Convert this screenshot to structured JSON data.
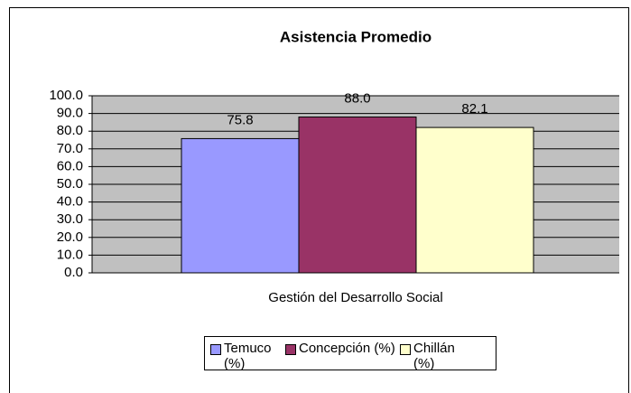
{
  "chart_data": {
    "type": "bar",
    "title": "Asistencia Promedio",
    "categories": [
      "Gestión del Desarrollo Social"
    ],
    "series": [
      {
        "name": "Temuco (%)",
        "color": "#9999ff",
        "values": [
          75.8
        ],
        "value_labels": [
          "75.8"
        ]
      },
      {
        "name": "Concepción (%)",
        "color": "#993366",
        "values": [
          88.0
        ],
        "value_labels": [
          "88.0"
        ]
      },
      {
        "name": "Chillán (%)",
        "color": "#ffffcc",
        "values": [
          82.1
        ],
        "value_labels": [
          "82.1"
        ]
      }
    ],
    "ylim": [
      0,
      100
    ],
    "yticks": [
      {
        "value": 0,
        "label": "0.0"
      },
      {
        "value": 10,
        "label": "10.0"
      },
      {
        "value": 20,
        "label": "20.0"
      },
      {
        "value": 30,
        "label": "30.0"
      },
      {
        "value": 40,
        "label": "40.0"
      },
      {
        "value": 50,
        "label": "50.0"
      },
      {
        "value": 60,
        "label": "60.0"
      },
      {
        "value": 70,
        "label": "70.0"
      },
      {
        "value": 80,
        "label": "80.0"
      },
      {
        "value": 90,
        "label": "90.0"
      },
      {
        "value": 100,
        "label": "100.0"
      }
    ],
    "grid": true,
    "plot_background": "#c0c0c0",
    "legend": "bottom"
  }
}
